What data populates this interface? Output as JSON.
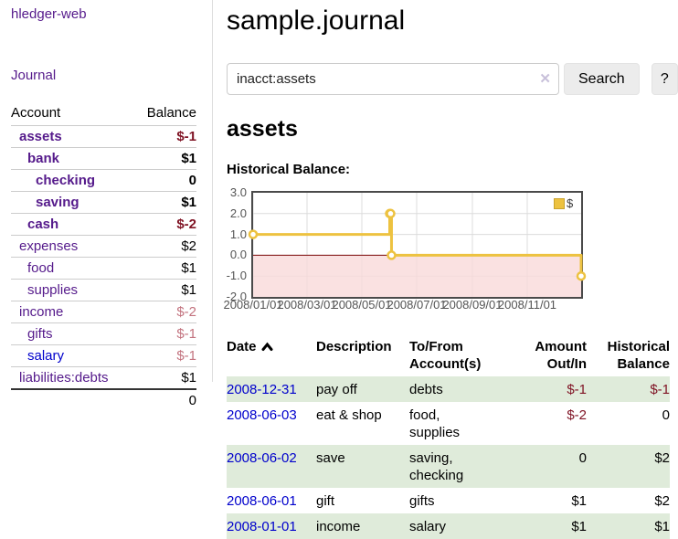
{
  "sidebar": {
    "app_title": "hledger-web",
    "nav": {
      "journal_label": "Journal"
    },
    "accounts_table": {
      "headers": {
        "account": "Account",
        "balance": "Balance"
      },
      "rows": [
        {
          "account": "assets",
          "balance": "$-1",
          "depth": 0,
          "emphasis": true,
          "balance_style": "negative-strong"
        },
        {
          "account": "bank",
          "balance": "$1",
          "depth": 1,
          "emphasis": true,
          "balance_style": "normal-strong"
        },
        {
          "account": "checking",
          "balance": "0",
          "depth": 2,
          "emphasis": true,
          "balance_style": "normal-strong"
        },
        {
          "account": "saving",
          "balance": "$1",
          "depth": 2,
          "emphasis": true,
          "balance_style": "normal-strong"
        },
        {
          "account": "cash",
          "balance": "$-2",
          "depth": 1,
          "emphasis": true,
          "balance_style": "negative-strong"
        },
        {
          "account": "expenses",
          "balance": "$2",
          "depth": 0,
          "emphasis": false,
          "balance_style": "normal"
        },
        {
          "account": "food",
          "balance": "$1",
          "depth": 1,
          "emphasis": false,
          "balance_style": "normal"
        },
        {
          "account": "supplies",
          "balance": "$1",
          "depth": 1,
          "emphasis": false,
          "balance_style": "normal"
        },
        {
          "account": "income",
          "balance": "$-2",
          "depth": 0,
          "emphasis": false,
          "balance_style": "negative-soft"
        },
        {
          "account": "gifts",
          "balance": "$-1",
          "depth": 1,
          "emphasis": false,
          "balance_style": "negative-soft"
        },
        {
          "account": "salary",
          "balance": "$-1",
          "depth": 1,
          "emphasis": false,
          "balance_style": "negative-soft",
          "link_style": "unvisited"
        },
        {
          "account": "liabilities:debts",
          "balance": "$1",
          "depth": 0,
          "emphasis": false,
          "balance_style": "normal"
        }
      ],
      "total": "0"
    }
  },
  "main": {
    "title": "sample.journal",
    "search": {
      "value": "inacct:assets",
      "clear_icon": "✕",
      "button_label": "Search",
      "help_label": "?"
    },
    "account_heading": "assets"
  },
  "chart_data": {
    "type": "line",
    "title": "Historical Balance:",
    "legend": "$",
    "legend_position": "top-right",
    "grid": true,
    "xlim": [
      "2008-01-01",
      "2008-12-31"
    ],
    "ylim": [
      -2,
      3
    ],
    "x_ticks": [
      "2008/01/01",
      "2008/03/01",
      "2008/05/01",
      "2008/07/01",
      "2008/09/01",
      "2008/11/01"
    ],
    "y_ticks": [
      "3.0",
      "2.0",
      "1.0",
      "0.0",
      "-1.0",
      "-2.0"
    ],
    "series": [
      {
        "name": "$",
        "step": true,
        "points": [
          [
            "2008-01-01",
            1
          ],
          [
            "2008-06-01",
            2
          ],
          [
            "2008-06-02",
            2
          ],
          [
            "2008-06-03",
            0
          ],
          [
            "2008-12-31",
            -1
          ]
        ]
      }
    ],
    "markings": {
      "negative_region_below": 0
    },
    "colors": {
      "line": "#edc240",
      "marker_fill": "#ffffff",
      "negative_region": "#f9d9d9",
      "zero_line": "#7d0a0a",
      "grid": "#dcdcdc",
      "border": "#4a4a4a",
      "tick_text": "#545454"
    }
  },
  "table": {
    "headers": {
      "date": "Date",
      "description": "Description",
      "accounts": "To/From Account(s)",
      "amount": "Amount Out/In",
      "balance": "Historical Balance"
    },
    "rows": [
      {
        "date": "2008-12-31",
        "description": "pay off",
        "accounts": "debts",
        "amount": "$-1",
        "amount_negative": true,
        "balance": "$-1",
        "balance_negative": true
      },
      {
        "date": "2008-06-03",
        "description": "eat & shop",
        "accounts": "food, supplies",
        "amount": "$-2",
        "amount_negative": true,
        "balance": "0",
        "balance_negative": false
      },
      {
        "date": "2008-06-02",
        "description": "save",
        "accounts": "saving, checking",
        "amount": "0",
        "amount_negative": false,
        "balance": "$2",
        "balance_negative": false
      },
      {
        "date": "2008-06-01",
        "description": "gift",
        "accounts": "gifts",
        "amount": "$1",
        "amount_negative": false,
        "balance": "$2",
        "balance_negative": false
      },
      {
        "date": "2008-01-01",
        "description": "income",
        "accounts": "salary",
        "amount": "$1",
        "amount_negative": false,
        "balance": "$1",
        "balance_negative": false
      }
    ]
  }
}
